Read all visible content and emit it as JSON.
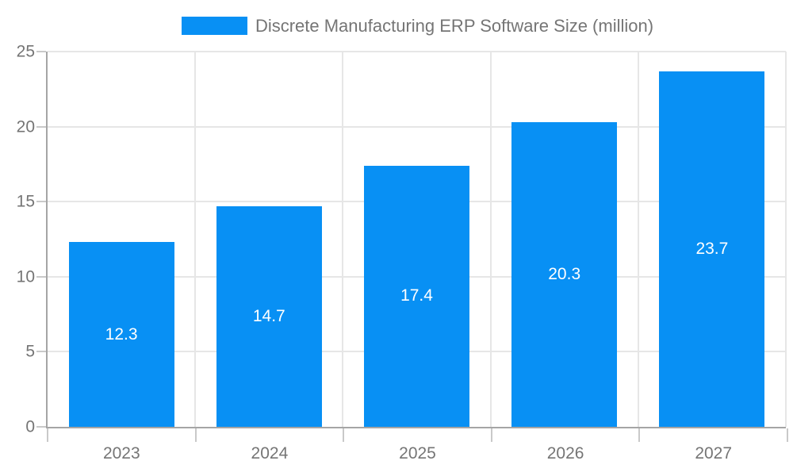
{
  "chart_data": {
    "type": "bar",
    "title": "",
    "legend": "Discrete Manufacturing ERP Software Size (million)",
    "legend_position": "top",
    "categories": [
      "2023",
      "2024",
      "2025",
      "2026",
      "2027"
    ],
    "values": [
      12.3,
      14.7,
      17.4,
      20.3,
      23.7
    ],
    "value_labels": [
      "12.3",
      "14.7",
      "17.4",
      "20.3",
      "23.7"
    ],
    "xlabel": "",
    "ylabel": "",
    "ylim": [
      0,
      25
    ],
    "yticks": [
      0,
      5,
      10,
      15,
      20,
      25
    ],
    "grid": true,
    "colors": {
      "bar": "#0890f4",
      "value_label": "#ffffff",
      "axis_text": "#757575",
      "axis_line": "#a5a5a5",
      "gridline": "#e6e6e6",
      "tick": "#c9c9c9",
      "background": "#ffffff"
    }
  }
}
